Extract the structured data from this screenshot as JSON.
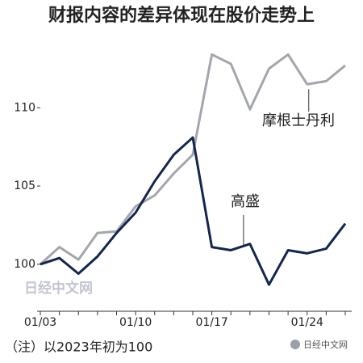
{
  "chart_data": {
    "type": "line",
    "title": "财报内容的差异体现在股价走势上",
    "note": "（注）以2023年初为100",
    "watermark": "日经中文网",
    "source_badge": "日经中文网",
    "categories": [
      "01/03",
      null,
      null,
      null,
      null,
      "01/10",
      null,
      null,
      null,
      "01/17",
      null,
      null,
      null,
      null,
      "01/24",
      null,
      null
    ],
    "series": [
      {
        "name": "摩根士丹利",
        "color": "#a3a6ad",
        "values": [
          100,
          101.1,
          100.3,
          102,
          102.1,
          103.7,
          104.4,
          105.8,
          107.0,
          113.4,
          112.8,
          109.9,
          112.5,
          113.4,
          111.5,
          111.7,
          112.7
        ]
      },
      {
        "name": "高盛",
        "color": "#13264f",
        "values": [
          100,
          100.4,
          99.4,
          100.5,
          102,
          103.3,
          105.3,
          107,
          108.1,
          101.1,
          100.9,
          101.3,
          98.7,
          100.9,
          100.7,
          101,
          102.6
        ]
      }
    ],
    "ylim": [
      97,
      114.3
    ],
    "yticks": [
      100,
      105,
      110
    ]
  }
}
